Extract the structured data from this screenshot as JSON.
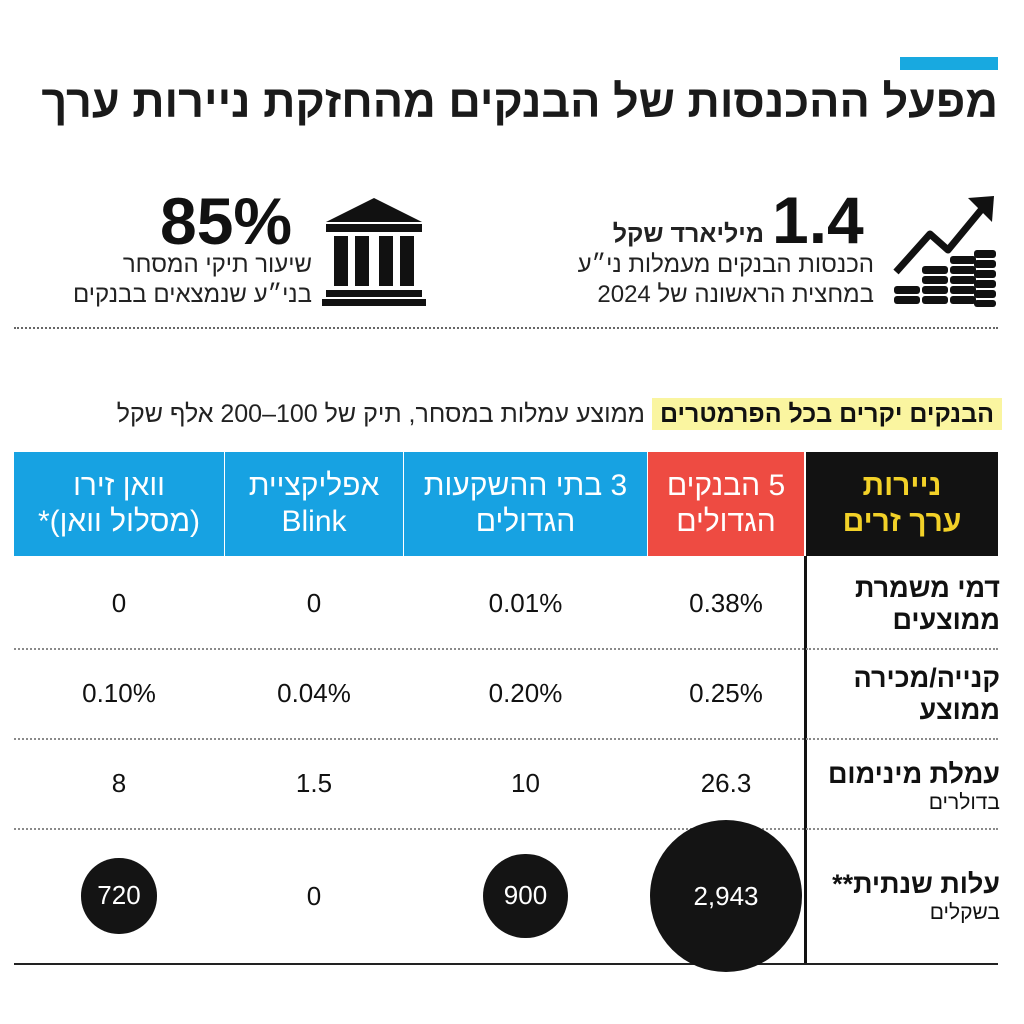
{
  "title": "מפעל ההכנסות של הבנקים מהחזקת ניירות ערך",
  "stats": {
    "revenue": {
      "value": "1.4",
      "unit": "מיליארד שקל",
      "line1": "הכנסות הבנקים מעמלות ני״ע",
      "line2": "במחצית הראשונה של 2024",
      "icon": "growth-chart-coins-icon"
    },
    "share": {
      "value": "85%",
      "line1": "שיעור תיקי המסחר",
      "line2": "בני״ע שנמצאים בבנקים",
      "icon": "bank-building-icon"
    }
  },
  "subtitle": {
    "highlight": "הבנקים יקרים בכל הפרמטרים",
    "rest": "ממוצע עמלות במסחר, תיק של 100–200 אלף שקל"
  },
  "colors": {
    "accent": "#18a9e0",
    "header_blue": "#17a2e2",
    "header_red": "#ee4b42",
    "header_black": "#121212",
    "label_yellow": "#f2d128",
    "highlight": "#faf5a0"
  },
  "chart_data": {
    "type": "table",
    "row_header": "ניירות ערך זרים",
    "columns": [
      {
        "line1": "5 הבנקים",
        "line2": "הגדולים"
      },
      {
        "line1": "3 בתי ההשקעות",
        "line2": "הגדולים"
      },
      {
        "line1": "אפליקציית",
        "line2": "Blink"
      },
      {
        "line1": "וואן זירו",
        "line2": "(מסלול וואן)*"
      }
    ],
    "rows": [
      {
        "label": "דמי משמרת",
        "sublabel": "ממוצעים",
        "values": [
          "0.38%",
          "0.01%",
          "0",
          "0"
        ]
      },
      {
        "label": "קנייה/מכירה",
        "sublabel": "ממוצע",
        "values": [
          "0.25%",
          "0.20%",
          "0.04%",
          "0.10%"
        ]
      },
      {
        "label": "עמלת מינימום",
        "sublabel": "בדולרים",
        "values": [
          "26.3",
          "10",
          "1.5",
          "8"
        ]
      },
      {
        "label": "עלות שנתית**",
        "sublabel": "בשקלים",
        "values": [
          "2,943",
          "900",
          "0",
          "720"
        ],
        "circle_values": [
          2943,
          900,
          0,
          720
        ]
      }
    ]
  }
}
